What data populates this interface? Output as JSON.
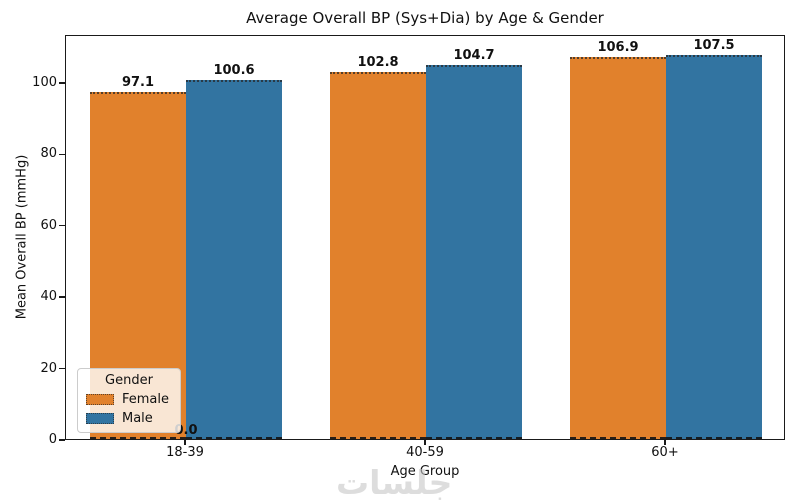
{
  "chart_data": {
    "type": "bar",
    "title": "Average Overall BP (Sys+Dia) by Age & Gender",
    "xlabel": "Age Group",
    "ylabel": "Mean Overall BP (mmHg)",
    "categories": [
      "18-39",
      "40-59",
      "60+"
    ],
    "series": [
      {
        "name": "Female",
        "color": "#e1812c",
        "values": [
          97.1,
          102.8,
          106.9
        ]
      },
      {
        "name": "Male",
        "color": "#3274a1",
        "values": [
          100.6,
          104.7,
          107.5
        ]
      }
    ],
    "bar_labels": [
      [
        "97.1",
        "102.8",
        "106.9"
      ],
      [
        "100.6",
        "104.7",
        "107.5"
      ]
    ],
    "annotations": [
      {
        "text": "0.0",
        "category": "18-39",
        "category_index": 0,
        "value": 0.0
      }
    ],
    "yticks": [
      0,
      20,
      40,
      60,
      80,
      100
    ],
    "ylim": [
      0,
      113.4
    ],
    "grid": false,
    "legend": {
      "title": "Gender",
      "entries": [
        "Female",
        "Male"
      ],
      "position": "lower-left"
    }
  },
  "watermark": {
    "text": "جلسات"
  }
}
